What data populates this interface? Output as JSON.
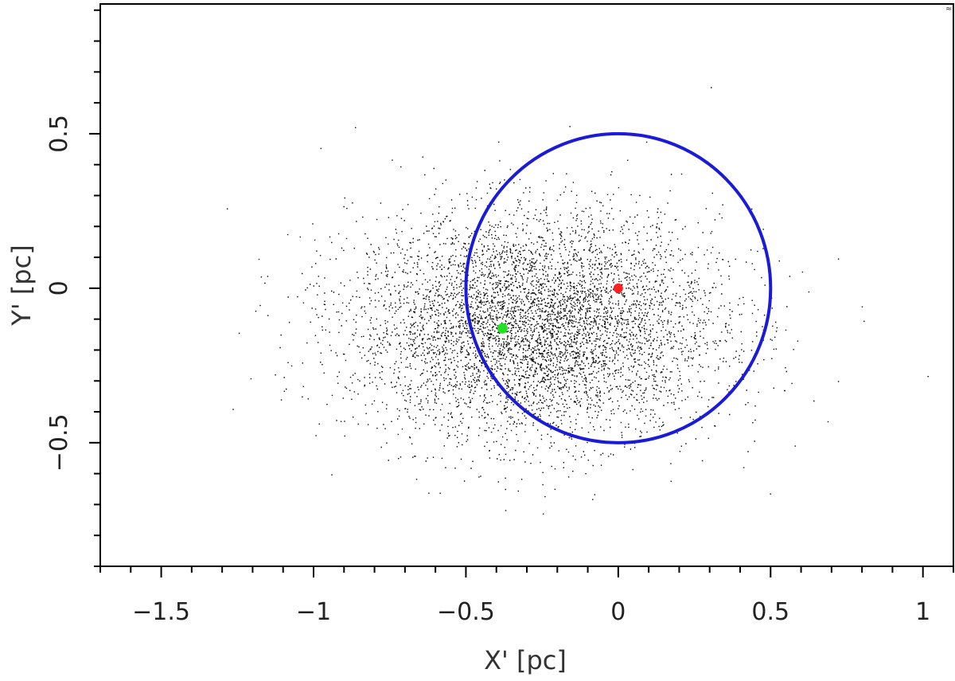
{
  "chart_data": {
    "type": "scatter",
    "xlabel": "X' [pc]",
    "ylabel": "Y' [pc]",
    "xlim": [
      -1.7,
      1.1
    ],
    "ylim": [
      -0.9,
      0.92
    ],
    "x_major_ticks": [
      -1.5,
      -1,
      -0.5,
      0,
      0.5,
      1
    ],
    "x_tick_labels": [
      "−1.5",
      "−1",
      "−0.5",
      "0",
      "0.5",
      "1"
    ],
    "x_minor_step": 0.1,
    "y_major_ticks": [
      -0.5,
      0,
      0.5
    ],
    "y_tick_labels": [
      "−0.5",
      "0",
      "0.5"
    ],
    "y_minor_step": 0.1,
    "grid": false,
    "corner_mark": "≈",
    "series": [
      {
        "kind": "point-cloud",
        "color": "#000000",
        "n_points": 20000,
        "core_center": [
          -0.27,
          -0.12
        ],
        "core_sigma": [
          0.3,
          0.18
        ]
      },
      {
        "kind": "circle",
        "color": "#1a1adb",
        "center": [
          0,
          0
        ],
        "radius": 0.5
      },
      {
        "kind": "marker",
        "color": "#ff2020",
        "x": 0,
        "y": 0
      },
      {
        "kind": "marker",
        "color": "#22e022",
        "x": -0.38,
        "y": -0.13
      }
    ]
  }
}
